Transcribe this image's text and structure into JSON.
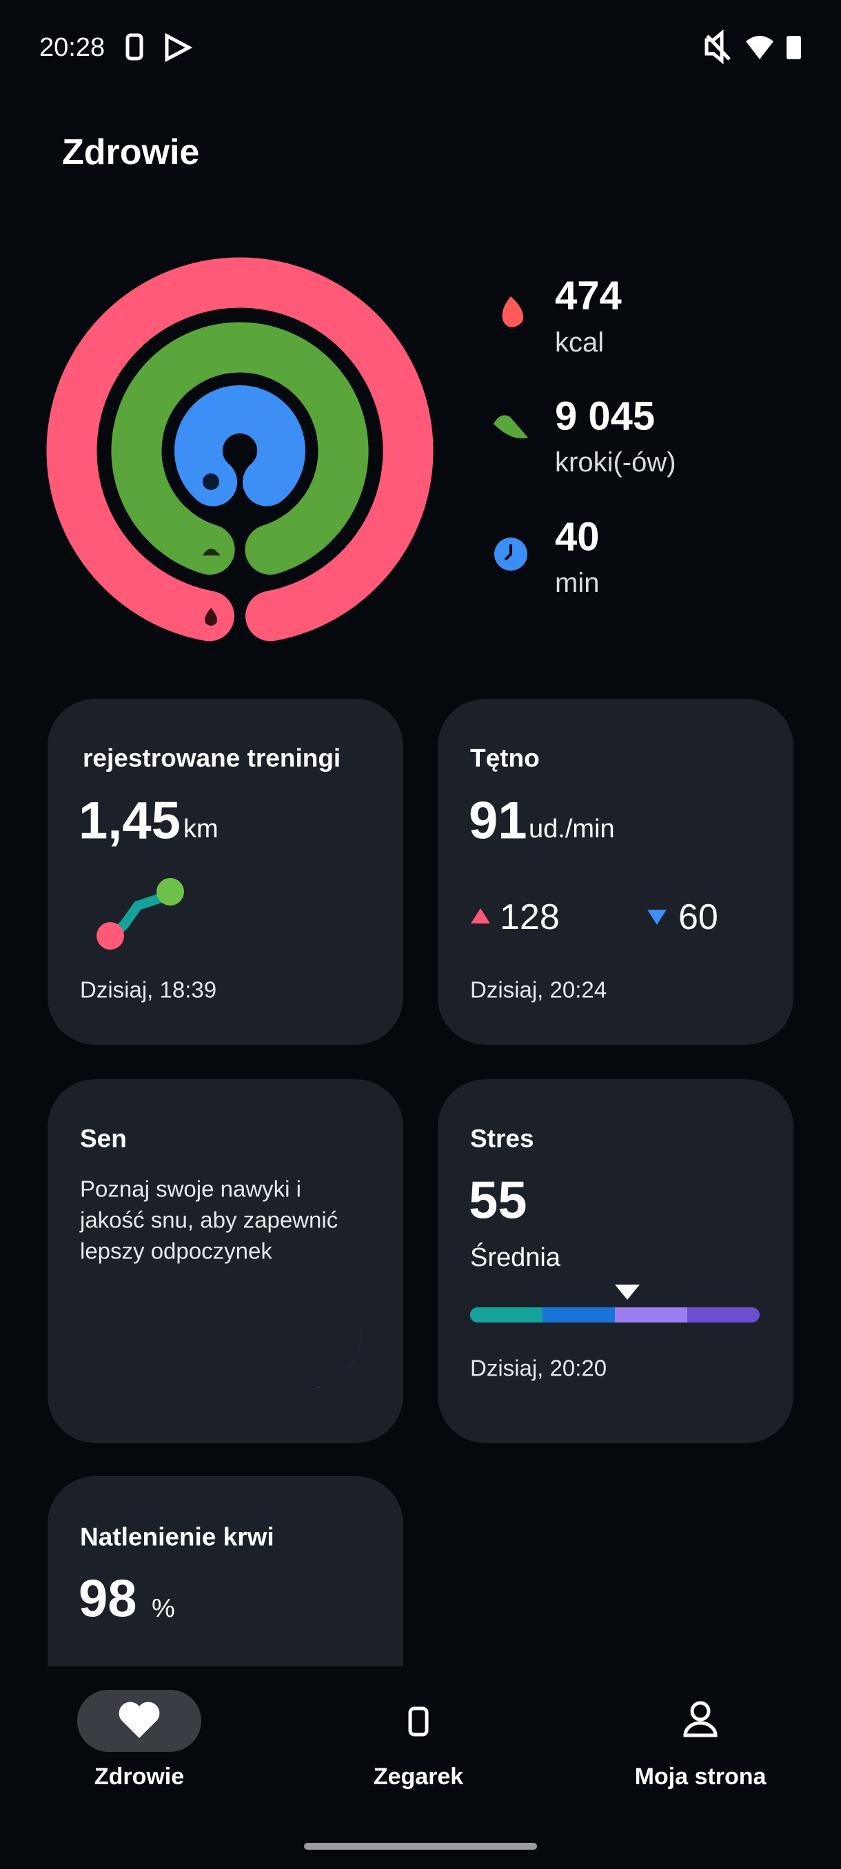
{
  "status_bar": {
    "time": "20:28"
  },
  "header": {
    "title": "Zdrowie"
  },
  "activity": {
    "calories": {
      "value": "474",
      "unit": "kcal"
    },
    "steps": {
      "value": "9 045",
      "unit": "kroki(-ów)"
    },
    "minutes": {
      "value": "40",
      "unit": "min"
    }
  },
  "cards": {
    "workouts": {
      "title": "rejestrowane treningi",
      "value": "1,45",
      "unit": "km",
      "time": "Dzisiaj, 18:39"
    },
    "heart_rate": {
      "title": "Tętno",
      "value": "91",
      "unit": "ud./min",
      "max": "128",
      "min": "60",
      "time": "Dzisiaj, 20:24"
    },
    "sleep": {
      "title": "Sen",
      "text": [
        "Poznaj swoje nawyki i",
        "jakość snu, aby zapewnić",
        "lepszy odpoczynek"
      ]
    },
    "stress": {
      "title": "Stres",
      "value": "55",
      "level": "Średnia",
      "time": "Dzisiaj, 20:20"
    },
    "spo2": {
      "title": "Natlenienie krwi",
      "value": "98",
      "unit": "%"
    }
  },
  "nav": [
    "Zdrowie",
    "Zegarek",
    "Moja strona"
  ]
}
